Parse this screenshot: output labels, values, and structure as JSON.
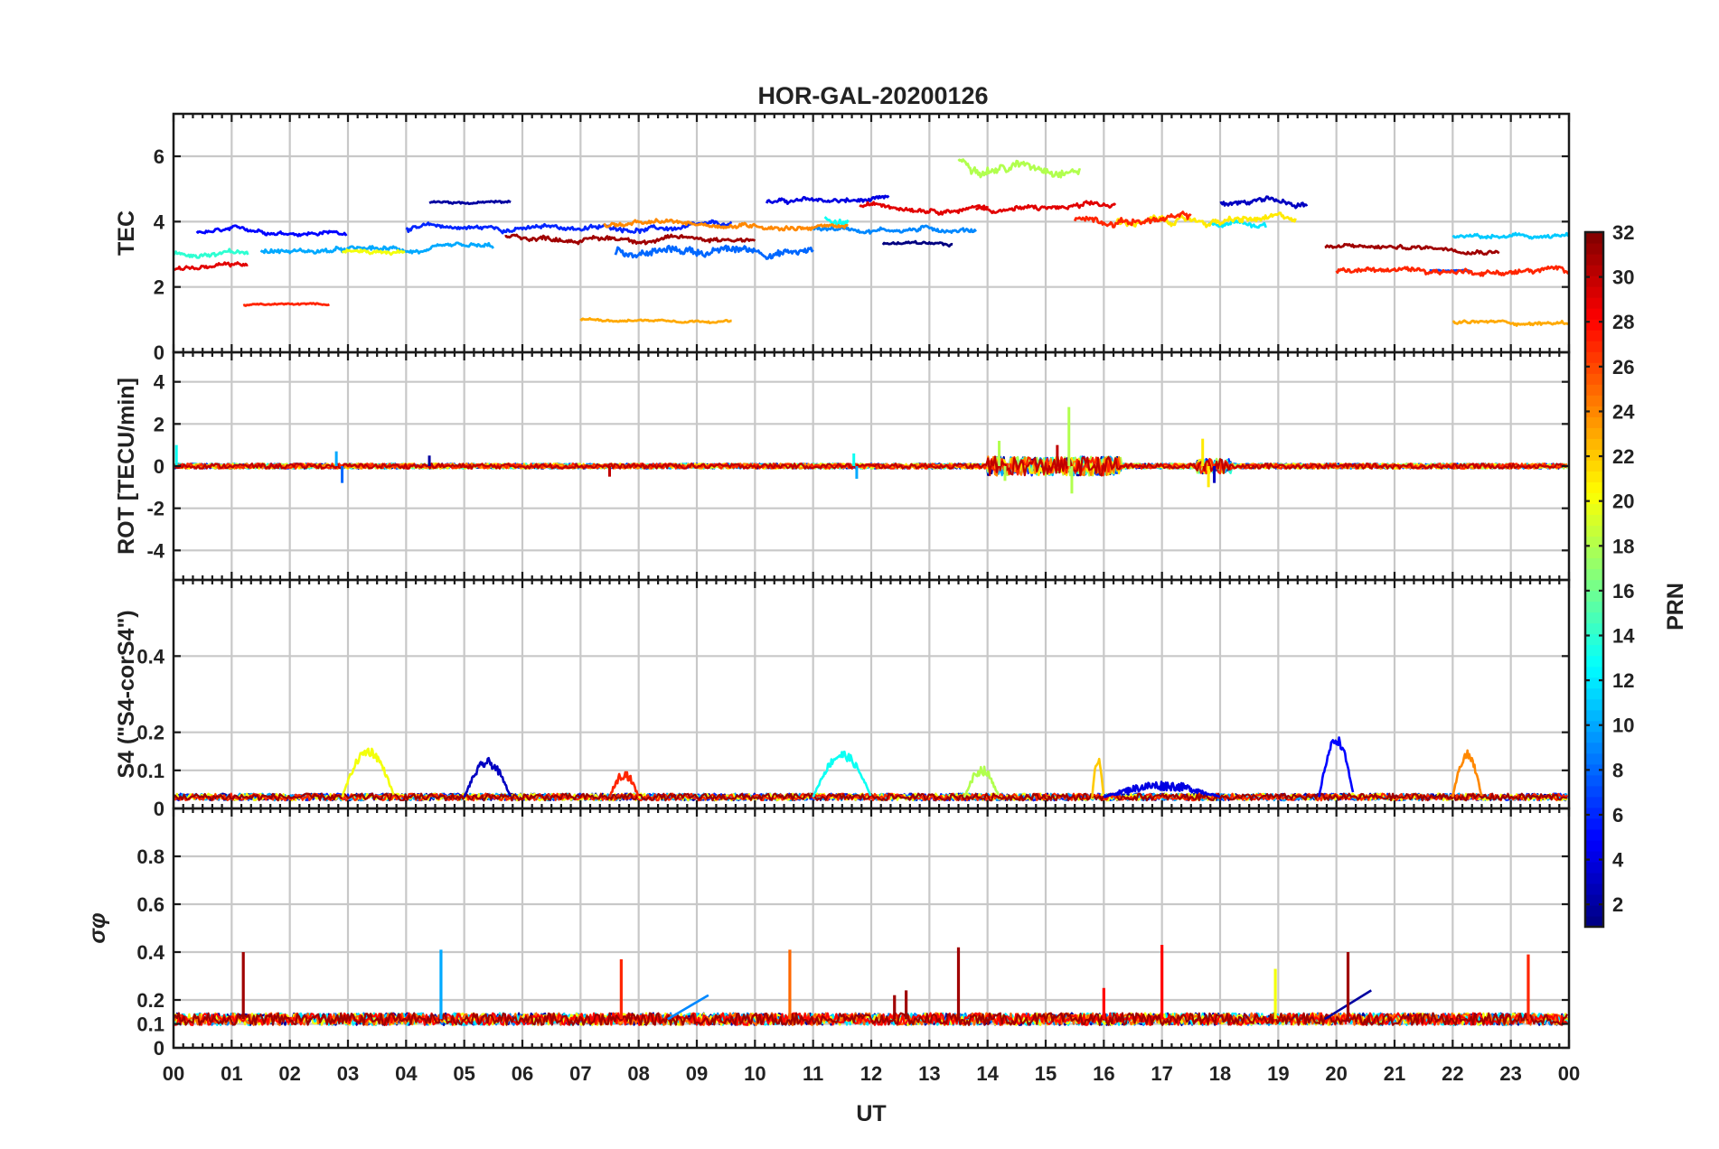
{
  "chart_data": {
    "type": "line",
    "title": "HOR-GAL-20200126",
    "xlabel": "UT",
    "x_ticks": [
      "00",
      "01",
      "02",
      "03",
      "04",
      "05",
      "06",
      "07",
      "08",
      "09",
      "10",
      "11",
      "12",
      "13",
      "14",
      "15",
      "16",
      "17",
      "18",
      "19",
      "20",
      "21",
      "22",
      "23",
      "00"
    ],
    "x_range_hours": [
      0,
      24
    ],
    "grid": true,
    "colorbar": {
      "label": "PRN",
      "colormap": "jet",
      "range": [
        1,
        32
      ],
      "ticks": [
        "2",
        "4",
        "6",
        "8",
        "10",
        "12",
        "14",
        "16",
        "18",
        "20",
        "22",
        "24",
        "26",
        "28",
        "30",
        "32"
      ]
    },
    "panels": [
      {
        "id": "tec",
        "ylabel": "TEC",
        "ylim": [
          0,
          7.3
        ],
        "yticks": [
          0,
          2,
          4,
          6
        ],
        "ytick_labels": [
          "0",
          "2",
          "4",
          "6"
        ],
        "series": [
          {
            "prn": 1,
            "start": 12.2,
            "end": 13.4,
            "level": 3.3,
            "noise": 0.25
          },
          {
            "prn": 2,
            "start": 4.4,
            "end": 5.8,
            "level": 4.6,
            "noise": 0.2
          },
          {
            "prn": 3,
            "start": 18.0,
            "end": 19.5,
            "level": 4.6,
            "noise": 0.4
          },
          {
            "prn": 4,
            "start": 10.2,
            "end": 12.3,
            "level": 4.6,
            "noise": 0.35
          },
          {
            "prn": 5,
            "start": 0.4,
            "end": 3.0,
            "level": 3.7,
            "noise": 0.3
          },
          {
            "prn": 6,
            "start": 4.0,
            "end": 9.6,
            "level": 3.8,
            "noise": 0.35
          },
          {
            "prn": 7,
            "start": 21.6,
            "end": 22.3,
            "level": 2.5,
            "noise": 0.1
          },
          {
            "prn": 8,
            "start": 7.6,
            "end": 11.0,
            "level": 3.1,
            "noise": 0.6
          },
          {
            "prn": 9,
            "start": 11.0,
            "end": 13.8,
            "level": 3.8,
            "noise": 0.35
          },
          {
            "prn": 10,
            "start": 1.5,
            "end": 5.5,
            "level": 3.1,
            "noise": 0.35
          },
          {
            "prn": 11,
            "start": 22.0,
            "end": 24.0,
            "level": 3.5,
            "noise": 0.3
          },
          {
            "prn": 12,
            "start": 17.8,
            "end": 18.8,
            "level": 3.9,
            "noise": 0.45
          },
          {
            "prn": 13,
            "start": 11.2,
            "end": 11.6,
            "level": 4.1,
            "noise": 0.55
          },
          {
            "prn": 14,
            "start": 0.0,
            "end": 1.3,
            "level": 3.0,
            "noise": 0.4
          },
          {
            "prn": 18,
            "start": 13.5,
            "end": 15.6,
            "level": 5.8,
            "noise": 0.7
          },
          {
            "prn": 20,
            "start": 2.9,
            "end": 4.0,
            "level": 3.1,
            "noise": 0.3
          },
          {
            "prn": 21,
            "start": 16.2,
            "end": 19.3,
            "level": 4.0,
            "noise": 0.5
          },
          {
            "prn": 23,
            "start": 7.0,
            "end": 9.6,
            "level": 1.0,
            "noise": 0.15
          },
          {
            "prn": 23,
            "start": 22.0,
            "end": 24.0,
            "level": 0.9,
            "noise": 0.25
          },
          {
            "prn": 24,
            "start": 7.4,
            "end": 11.6,
            "level": 3.9,
            "noise": 0.35
          },
          {
            "prn": 27,
            "start": 1.2,
            "end": 2.7,
            "level": 1.45,
            "noise": 0.12
          },
          {
            "prn": 27,
            "start": 15.5,
            "end": 17.5,
            "level": 4.1,
            "noise": 0.5
          },
          {
            "prn": 27,
            "start": 20.0,
            "end": 24.0,
            "level": 2.5,
            "noise": 0.4
          },
          {
            "prn": 29,
            "start": 0.0,
            "end": 1.3,
            "level": 2.6,
            "noise": 0.3
          },
          {
            "prn": 29,
            "start": 11.8,
            "end": 14.0,
            "level": 4.5,
            "noise": 0.35
          },
          {
            "prn": 29,
            "start": 13.8,
            "end": 16.2,
            "level": 4.4,
            "noise": 0.4
          },
          {
            "prn": 31,
            "start": 5.7,
            "end": 10.0,
            "level": 3.5,
            "noise": 0.35
          },
          {
            "prn": 31,
            "start": 19.8,
            "end": 22.8,
            "level": 3.2,
            "noise": 0.3
          }
        ]
      },
      {
        "id": "rot",
        "ylabel": "ROT [TECU/min]",
        "ylim": [
          -5.4,
          5.4
        ],
        "yticks": [
          -4,
          -2,
          0,
          2,
          4
        ],
        "ytick_labels": [
          "-4",
          "-2",
          "0",
          "2",
          "4"
        ],
        "baseline": 0,
        "spikes": [
          {
            "t": 0.05,
            "v": 1.0,
            "prn": 13
          },
          {
            "t": 2.8,
            "v": 0.7,
            "prn": 10
          },
          {
            "t": 2.9,
            "v": -0.8,
            "prn": 8
          },
          {
            "t": 4.4,
            "v": 0.5,
            "prn": 2
          },
          {
            "t": 7.5,
            "v": -0.5,
            "prn": 30
          },
          {
            "t": 11.7,
            "v": 0.6,
            "prn": 13
          },
          {
            "t": 11.75,
            "v": -0.6,
            "prn": 10
          },
          {
            "t": 14.2,
            "v": 1.2,
            "prn": 18
          },
          {
            "t": 14.3,
            "v": -0.7,
            "prn": 18
          },
          {
            "t": 15.2,
            "v": 1.0,
            "prn": 30
          },
          {
            "t": 15.4,
            "v": 2.8,
            "prn": 18
          },
          {
            "t": 15.45,
            "v": -1.3,
            "prn": 18
          },
          {
            "t": 17.7,
            "v": 1.3,
            "prn": 21
          },
          {
            "t": 17.8,
            "v": -1.0,
            "prn": 21
          },
          {
            "t": 17.9,
            "v": -0.8,
            "prn": 3
          }
        ],
        "activity": [
          {
            "start": 0.0,
            "end": 24.0,
            "amp": 0.12
          },
          {
            "start": 14.0,
            "end": 16.3,
            "amp": 0.45
          },
          {
            "start": 17.6,
            "end": 18.2,
            "amp": 0.35
          }
        ]
      },
      {
        "id": "s4",
        "ylabel": "S4 (\"S4-corS4\")",
        "ylim": [
          0,
          0.6
        ],
        "yticks": [
          0,
          0.1,
          0.2,
          0.4
        ],
        "ytick_labels": [
          "0",
          "0.1",
          "0.2",
          "0.4"
        ],
        "baseline": 0.03,
        "bumps": [
          {
            "prn": 20,
            "start": 2.9,
            "end": 3.8,
            "peak": 0.15
          },
          {
            "prn": 3,
            "start": 5.0,
            "end": 5.8,
            "peak": 0.12
          },
          {
            "prn": 27,
            "start": 7.5,
            "end": 8.0,
            "peak": 0.09
          },
          {
            "prn": 13,
            "start": 11.0,
            "end": 12.0,
            "peak": 0.14
          },
          {
            "prn": 18,
            "start": 13.6,
            "end": 14.2,
            "peak": 0.1
          },
          {
            "prn": 22,
            "start": 15.8,
            "end": 16.0,
            "peak": 0.13
          },
          {
            "prn": 4,
            "start": 16.0,
            "end": 18.0,
            "peak": 0.06
          },
          {
            "prn": 5,
            "start": 19.7,
            "end": 20.3,
            "peak": 0.18
          },
          {
            "prn": 24,
            "start": 22.0,
            "end": 22.5,
            "peak": 0.14
          }
        ]
      },
      {
        "id": "sigma_phi",
        "ylabel": "σφ",
        "ylim": [
          0,
          1.0
        ],
        "yticks": [
          0,
          0.1,
          0.2,
          0.4,
          0.6,
          0.8
        ],
        "ytick_labels": [
          "0",
          "0.1",
          "0.2",
          "0.4",
          "0.6",
          "0.8"
        ],
        "baseline": 0.12,
        "spikes": [
          {
            "t": 1.2,
            "v": 0.4,
            "prn": 31
          },
          {
            "t": 4.6,
            "v": 0.41,
            "prn": 10
          },
          {
            "t": 7.7,
            "v": 0.37,
            "prn": 27
          },
          {
            "t": 10.6,
            "v": 0.41,
            "prn": 25
          },
          {
            "t": 13.5,
            "v": 0.42,
            "prn": 31
          },
          {
            "t": 16.0,
            "v": 0.25,
            "prn": 28
          },
          {
            "t": 17.0,
            "v": 0.43,
            "prn": 28
          },
          {
            "t": 18.95,
            "v": 0.33,
            "prn": 20
          },
          {
            "t": 20.2,
            "v": 0.4,
            "prn": 31
          },
          {
            "t": 23.3,
            "v": 0.39,
            "prn": 27
          },
          {
            "t": 12.4,
            "v": 0.22,
            "prn": 31
          },
          {
            "t": 12.6,
            "v": 0.24,
            "prn": 31
          }
        ],
        "ramps": [
          {
            "prn": 9,
            "t0": 8.5,
            "v0": 0.12,
            "t1": 9.2,
            "v1": 0.22
          },
          {
            "prn": 2,
            "t0": 19.8,
            "v0": 0.12,
            "t1": 20.6,
            "v1": 0.24
          }
        ]
      }
    ]
  }
}
